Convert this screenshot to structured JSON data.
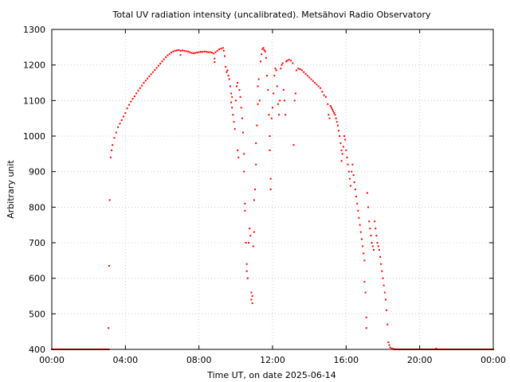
{
  "chart_data": {
    "type": "scatter",
    "title": "Total UV radiation intensity (uncalibrated). Metsähovi Radio Observatory",
    "xlabel": "Time UT, on date 2025-06-14",
    "ylabel": "Arbitrary unit",
    "xlim": [
      0,
      24
    ],
    "ylim": [
      400,
      1300
    ],
    "x_ticks": [
      {
        "value": 0,
        "label": "00:00"
      },
      {
        "value": 4,
        "label": "04:00"
      },
      {
        "value": 8,
        "label": "08:00"
      },
      {
        "value": 12,
        "label": "12:00"
      },
      {
        "value": 16,
        "label": "16:00"
      },
      {
        "value": 20,
        "label": "20:00"
      },
      {
        "value": 24,
        "label": "00:00"
      }
    ],
    "y_ticks": [
      400,
      500,
      600,
      700,
      800,
      900,
      1000,
      1100,
      1200,
      1300
    ],
    "grid": true,
    "marker_color": "#ff0000",
    "series": [
      {
        "points": [
          [
            0.0,
            400
          ],
          [
            0.5,
            400
          ],
          [
            1.0,
            400
          ],
          [
            1.5,
            400
          ],
          [
            2.0,
            400
          ],
          [
            2.5,
            400
          ],
          [
            3.0,
            400
          ],
          [
            3.1,
            400
          ],
          [
            3.08,
            460
          ],
          [
            3.12,
            635
          ],
          [
            3.15,
            820
          ],
          [
            3.2,
            940
          ],
          [
            3.25,
            960
          ],
          [
            3.3,
            975
          ],
          [
            3.4,
            995
          ],
          [
            3.5,
            1010
          ],
          [
            3.6,
            1025
          ],
          [
            3.7,
            1035
          ],
          [
            3.8,
            1045
          ],
          [
            3.9,
            1055
          ],
          [
            4.0,
            1065
          ],
          [
            4.1,
            1078
          ],
          [
            4.2,
            1088
          ],
          [
            4.3,
            1097
          ],
          [
            4.4,
            1105
          ],
          [
            4.5,
            1112
          ],
          [
            4.6,
            1120
          ],
          [
            4.7,
            1128
          ],
          [
            4.8,
            1135
          ],
          [
            4.9,
            1142
          ],
          [
            5.0,
            1150
          ],
          [
            5.1,
            1156
          ],
          [
            5.2,
            1162
          ],
          [
            5.3,
            1168
          ],
          [
            5.4,
            1174
          ],
          [
            5.5,
            1180
          ],
          [
            5.6,
            1186
          ],
          [
            5.7,
            1192
          ],
          [
            5.8,
            1198
          ],
          [
            5.9,
            1204
          ],
          [
            6.0,
            1210
          ],
          [
            6.1,
            1216
          ],
          [
            6.2,
            1222
          ],
          [
            6.3,
            1227
          ],
          [
            6.4,
            1231
          ],
          [
            6.5,
            1235
          ],
          [
            6.6,
            1238
          ],
          [
            6.7,
            1240
          ],
          [
            6.8,
            1241
          ],
          [
            6.9,
            1242
          ],
          [
            7.0,
            1240
          ],
          [
            7.0,
            1228
          ],
          [
            7.1,
            1241
          ],
          [
            7.2,
            1240
          ],
          [
            7.3,
            1239
          ],
          [
            7.4,
            1238
          ],
          [
            7.5,
            1236
          ],
          [
            7.6,
            1234
          ],
          [
            7.7,
            1233
          ],
          [
            7.8,
            1234
          ],
          [
            7.9,
            1235
          ],
          [
            8.0,
            1236
          ],
          [
            8.1,
            1237
          ],
          [
            8.2,
            1237
          ],
          [
            8.3,
            1238
          ],
          [
            8.4,
            1237
          ],
          [
            8.5,
            1236
          ],
          [
            8.6,
            1236
          ],
          [
            8.7,
            1235
          ],
          [
            8.8,
            1232
          ],
          [
            8.85,
            1218
          ],
          [
            8.85,
            1208
          ],
          [
            8.9,
            1236
          ],
          [
            9.0,
            1240
          ],
          [
            9.1,
            1244
          ],
          [
            9.2,
            1246
          ],
          [
            9.3,
            1248
          ],
          [
            9.35,
            1240
          ],
          [
            9.4,
            1225
          ],
          [
            9.45,
            1195
          ],
          [
            9.5,
            1180
          ],
          [
            9.55,
            1185
          ],
          [
            9.6,
            1170
          ],
          [
            9.65,
            1160
          ],
          [
            9.7,
            1140
          ],
          [
            9.75,
            1120
          ],
          [
            9.75,
            1095
          ],
          [
            9.8,
            1110
          ],
          [
            9.8,
            1080
          ],
          [
            9.85,
            1060
          ],
          [
            9.9,
            1040
          ],
          [
            9.95,
            1020
          ],
          [
            10.0,
            1100
          ],
          [
            10.05,
            1140
          ],
          [
            10.1,
            1150
          ],
          [
            10.1,
            960
          ],
          [
            10.15,
            940
          ],
          [
            10.2,
            1130
          ],
          [
            10.25,
            1110
          ],
          [
            10.3,
            1080
          ],
          [
            10.35,
            1050
          ],
          [
            10.4,
            1010
          ],
          [
            10.45,
            950
          ],
          [
            10.45,
            900
          ],
          [
            10.5,
            810
          ],
          [
            10.5,
            790
          ],
          [
            10.55,
            700
          ],
          [
            10.6,
            640
          ],
          [
            10.6,
            620
          ],
          [
            10.65,
            600
          ],
          [
            10.7,
            700
          ],
          [
            10.75,
            740
          ],
          [
            10.8,
            720
          ],
          [
            10.85,
            560
          ],
          [
            10.85,
            540
          ],
          [
            10.9,
            530
          ],
          [
            10.9,
            550
          ],
          [
            10.95,
            690
          ],
          [
            11.0,
            730
          ],
          [
            11.0,
            820
          ],
          [
            11.05,
            850
          ],
          [
            11.1,
            920
          ],
          [
            11.1,
            980
          ],
          [
            11.15,
            1030
          ],
          [
            11.2,
            1090
          ],
          [
            11.2,
            1140
          ],
          [
            11.25,
            1160
          ],
          [
            11.3,
            1100
          ],
          [
            11.35,
            1210
          ],
          [
            11.4,
            1230
          ],
          [
            11.45,
            1245
          ],
          [
            11.5,
            1248
          ],
          [
            11.55,
            1242
          ],
          [
            11.6,
            1238
          ],
          [
            11.65,
            1220
          ],
          [
            11.7,
            1170
          ],
          [
            11.75,
            1130
          ],
          [
            11.8,
            1060
          ],
          [
            11.85,
            1000
          ],
          [
            11.85,
            960
          ],
          [
            11.9,
            880
          ],
          [
            11.9,
            850
          ],
          [
            11.95,
            1050
          ],
          [
            12.0,
            1080
          ],
          [
            12.05,
            1120
          ],
          [
            12.1,
            1170
          ],
          [
            12.15,
            1190
          ],
          [
            12.2,
            1185
          ],
          [
            12.25,
            1140
          ],
          [
            12.3,
            1090
          ],
          [
            12.35,
            1060
          ],
          [
            12.4,
            1100
          ],
          [
            12.45,
            1190
          ],
          [
            12.5,
            1200
          ],
          [
            12.55,
            1205
          ],
          [
            12.6,
            1130
          ],
          [
            12.65,
            1100
          ],
          [
            12.7,
            1060
          ],
          [
            12.75,
            1210
          ],
          [
            12.8,
            1212
          ],
          [
            12.9,
            1215
          ],
          [
            13.0,
            1212
          ],
          [
            13.1,
            1205
          ],
          [
            13.15,
            975
          ],
          [
            13.2,
            1100
          ],
          [
            13.25,
            1120
          ],
          [
            13.3,
            1185
          ],
          [
            13.4,
            1190
          ],
          [
            13.5,
            1188
          ],
          [
            13.6,
            1185
          ],
          [
            13.7,
            1180
          ],
          [
            13.8,
            1175
          ],
          [
            13.9,
            1170
          ],
          [
            14.0,
            1165
          ],
          [
            14.1,
            1160
          ],
          [
            14.2,
            1155
          ],
          [
            14.3,
            1150
          ],
          [
            14.4,
            1145
          ],
          [
            14.5,
            1140
          ],
          [
            14.6,
            1135
          ],
          [
            14.7,
            1125
          ],
          [
            14.8,
            1115
          ],
          [
            14.9,
            1110
          ],
          [
            15.0,
            1090
          ],
          [
            15.05,
            1060
          ],
          [
            15.1,
            1050
          ],
          [
            15.15,
            1085
          ],
          [
            15.2,
            1080
          ],
          [
            15.25,
            1075
          ],
          [
            15.3,
            1070
          ],
          [
            15.35,
            1065
          ],
          [
            15.4,
            1060
          ],
          [
            15.45,
            1050
          ],
          [
            15.5,
            1040
          ],
          [
            15.55,
            1030
          ],
          [
            15.6,
            1015
          ],
          [
            15.65,
            1000
          ],
          [
            15.7,
            980
          ],
          [
            15.75,
            960
          ],
          [
            15.75,
            930
          ],
          [
            15.8,
            950
          ],
          [
            15.85,
            970
          ],
          [
            15.9,
            1000
          ],
          [
            15.95,
            990
          ],
          [
            16.0,
            960
          ],
          [
            16.05,
            940
          ],
          [
            16.1,
            920
          ],
          [
            16.15,
            900
          ],
          [
            16.2,
            880
          ],
          [
            16.25,
            860
          ],
          [
            16.3,
            900
          ],
          [
            16.35,
            920
          ],
          [
            16.4,
            890
          ],
          [
            16.45,
            870
          ],
          [
            16.5,
            850
          ],
          [
            16.55,
            830
          ],
          [
            16.6,
            810
          ],
          [
            16.65,
            790
          ],
          [
            16.7,
            770
          ],
          [
            16.75,
            750
          ],
          [
            16.8,
            730
          ],
          [
            16.85,
            710
          ],
          [
            16.9,
            690
          ],
          [
            16.95,
            670
          ],
          [
            17.0,
            650
          ],
          [
            17.0,
            590
          ],
          [
            17.05,
            560
          ],
          [
            17.1,
            490
          ],
          [
            17.1,
            460
          ],
          [
            17.15,
            840
          ],
          [
            17.2,
            800
          ],
          [
            17.25,
            760
          ],
          [
            17.3,
            740
          ],
          [
            17.35,
            720
          ],
          [
            17.4,
            700
          ],
          [
            17.45,
            690
          ],
          [
            17.5,
            680
          ],
          [
            17.55,
            760
          ],
          [
            17.6,
            740
          ],
          [
            17.65,
            720
          ],
          [
            17.7,
            700
          ],
          [
            17.75,
            690
          ],
          [
            17.8,
            680
          ],
          [
            17.85,
            660
          ],
          [
            17.9,
            640
          ],
          [
            17.95,
            620
          ],
          [
            18.0,
            600
          ],
          [
            18.05,
            580
          ],
          [
            18.1,
            560
          ],
          [
            18.15,
            540
          ],
          [
            18.2,
            510
          ],
          [
            18.25,
            470
          ],
          [
            18.3,
            420
          ],
          [
            18.35,
            412
          ],
          [
            18.4,
            405
          ],
          [
            18.5,
            402
          ],
          [
            18.6,
            401
          ],
          [
            18.8,
            400
          ],
          [
            19.0,
            400
          ],
          [
            19.5,
            400
          ],
          [
            20.0,
            400
          ],
          [
            20.5,
            400
          ],
          [
            20.9,
            402
          ],
          [
            21.0,
            400
          ],
          [
            21.5,
            400
          ],
          [
            22.0,
            400
          ],
          [
            22.5,
            400
          ],
          [
            23.0,
            400
          ],
          [
            23.5,
            400
          ],
          [
            24.0,
            400
          ]
        ]
      }
    ]
  }
}
